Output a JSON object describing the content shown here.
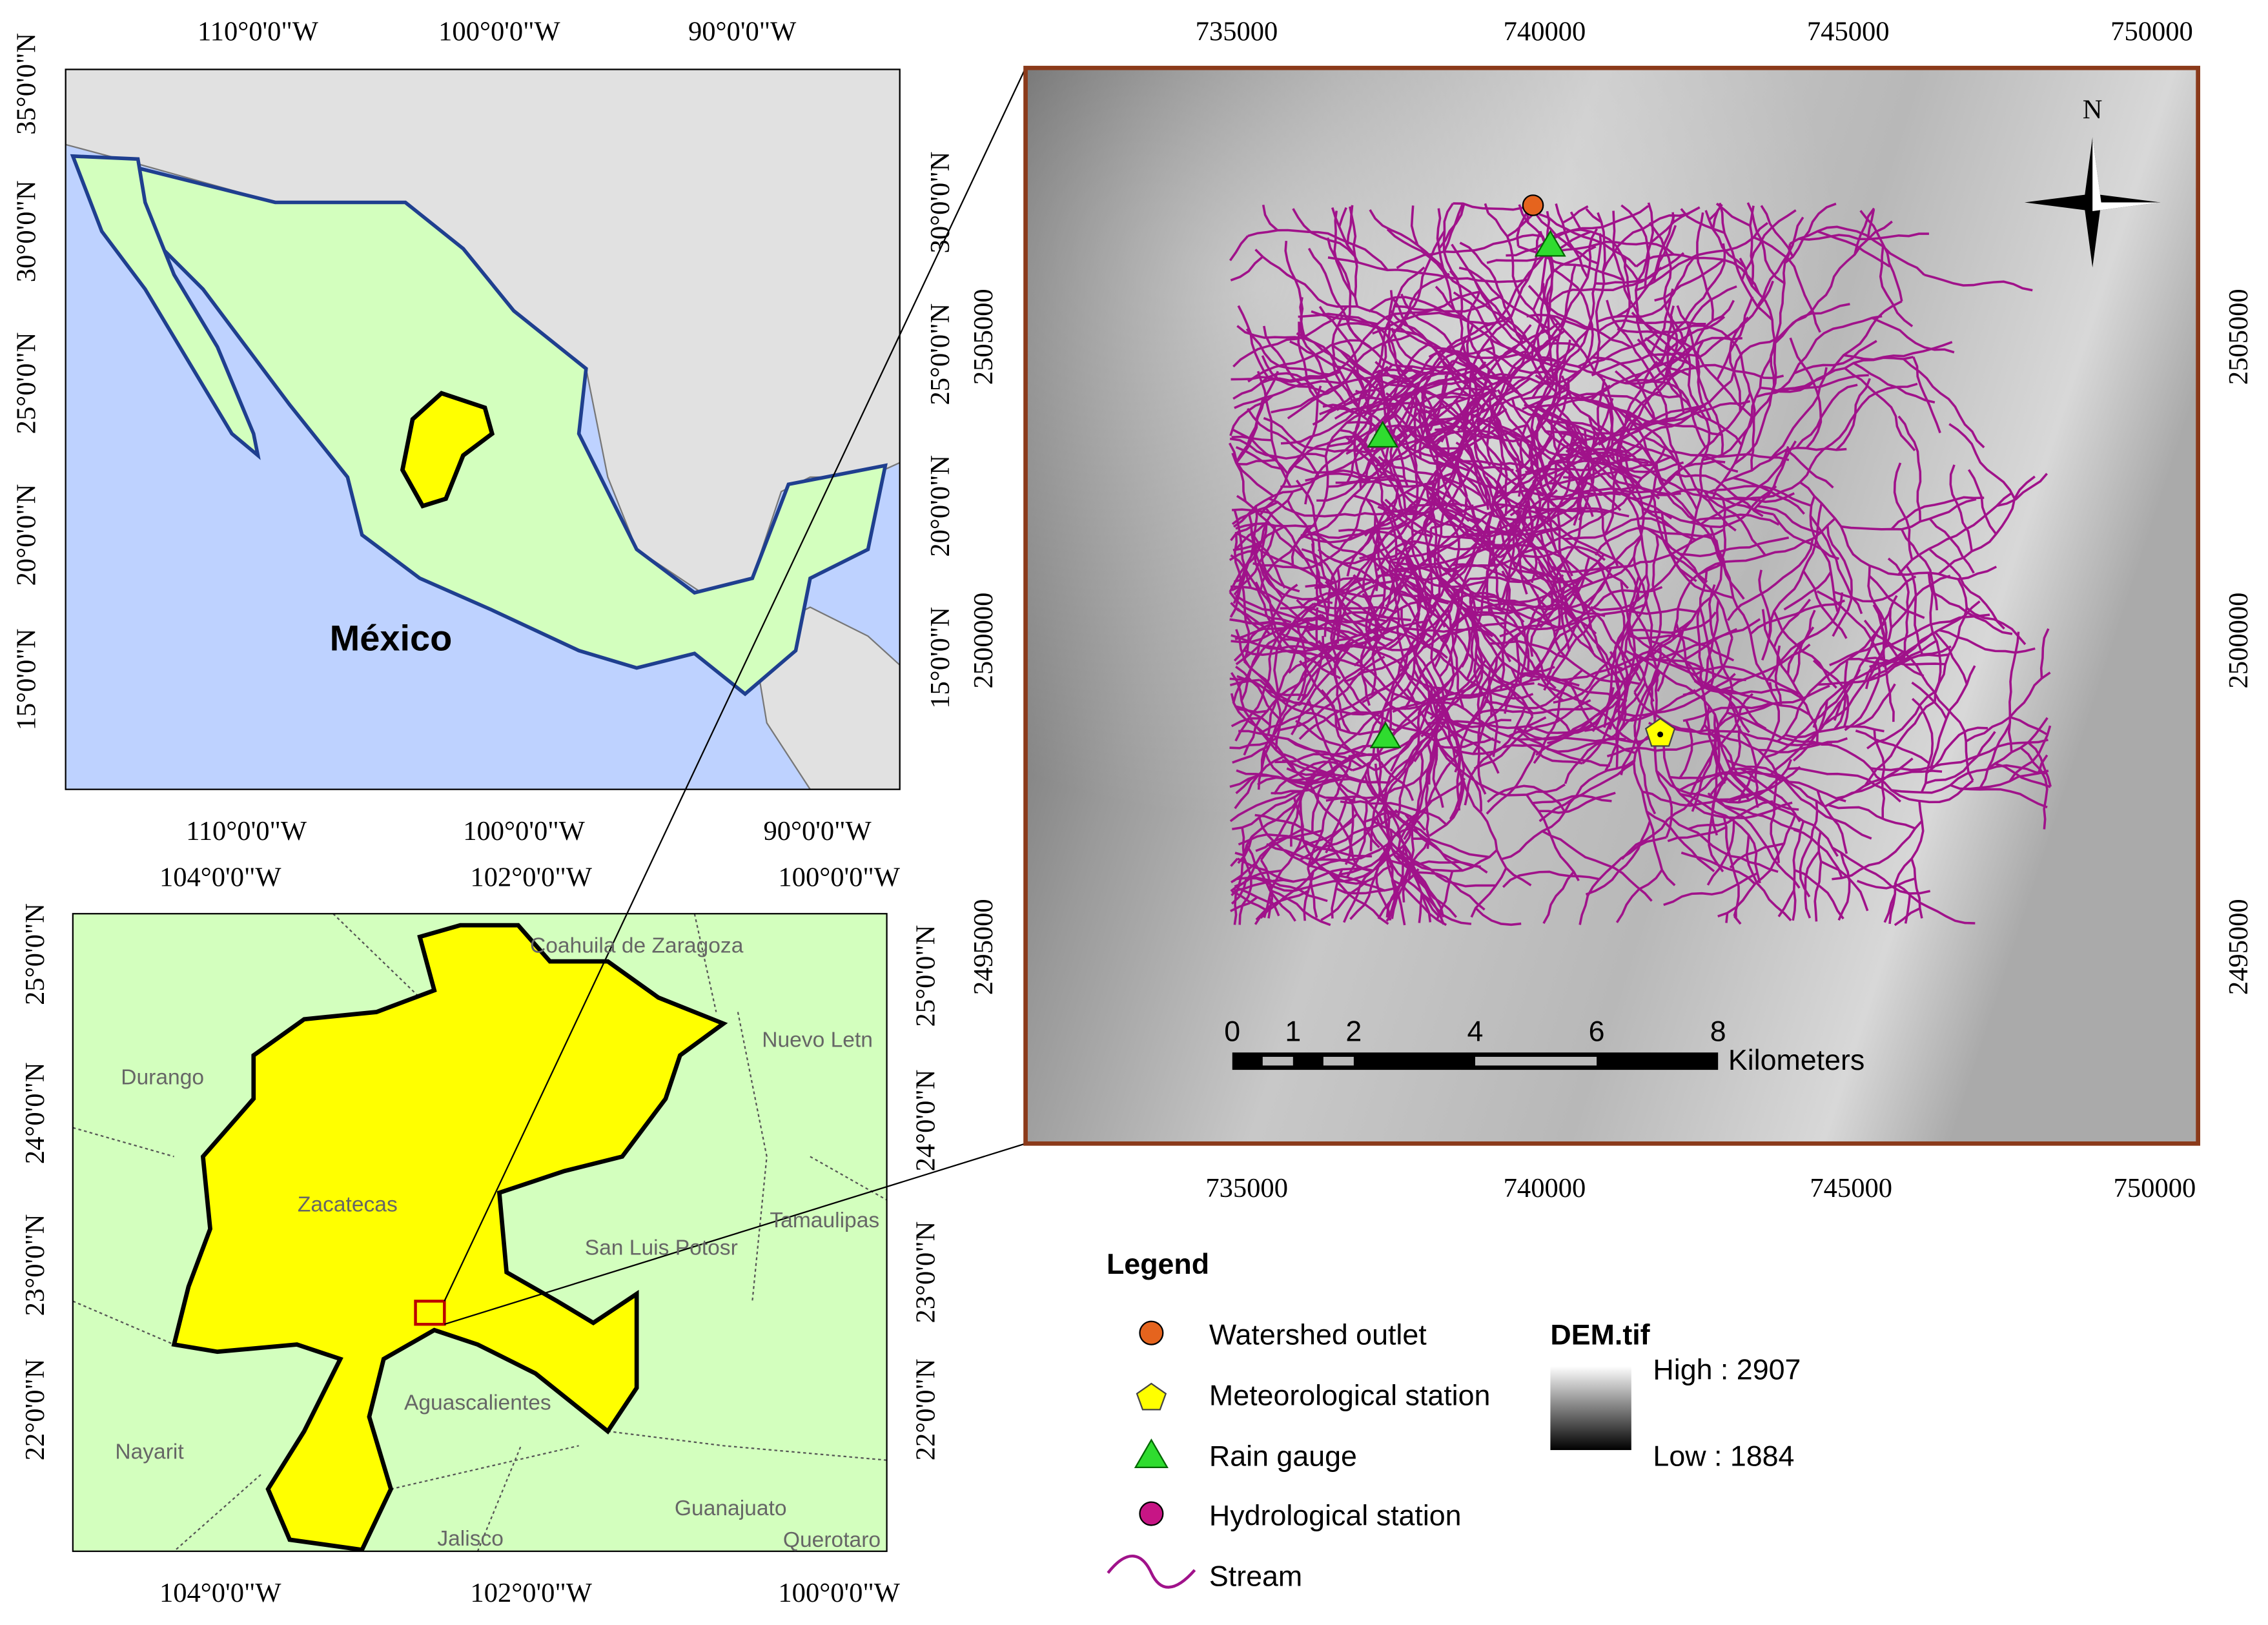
{
  "overview_map": {
    "top_ticks": [
      "110°0'0\"W",
      "100°0'0\"W",
      "90°0'0\"W"
    ],
    "left_ticks": [
      "35°0'0\"N",
      "30°0'0\"N",
      "25°0'0\"N",
      "20°0'0\"N",
      "15°0'0\"N"
    ],
    "right_ticks": [
      "30°0'0\"N",
      "25°0'0\"N",
      "20°0'0\"N",
      "15°0'0\"N"
    ],
    "label": "México"
  },
  "state_map": {
    "top_ticks": [
      "104°0'0\"W",
      "102°0'0\"W",
      "100°0'0\"W"
    ],
    "left_ticks": [
      "25°0'0\"N",
      "24°0'0\"N",
      "23°0'0\"N",
      "22°0'0\"N"
    ],
    "places": [
      "Coahuila de Zaragoza",
      "Nuevo Letn",
      "Durango",
      "Zacatecas",
      "San Luis Potosr",
      "Tamaulipas",
      "Nayarit",
      "Aguascalientes",
      "Guanajuato",
      "Jalisco",
      "Querotaro"
    ]
  },
  "watershed_map": {
    "x_ticks": [
      "735000",
      "740000",
      "745000",
      "750000"
    ],
    "y_ticks": [
      "2505000",
      "2500000",
      "2495000"
    ],
    "north": "N",
    "scale_labels": [
      "0",
      "1",
      "2",
      "4",
      "6",
      "8"
    ],
    "scale_unit": "Kilometers"
  },
  "legend": {
    "title": "Legend",
    "items": [
      "Watershed outlet",
      "Meteorological station",
      "Rain gauge",
      "Hydrological station",
      "Stream"
    ],
    "raster_title": "DEM.tif",
    "high": "High : 2907",
    "low": "Low : 1884"
  }
}
